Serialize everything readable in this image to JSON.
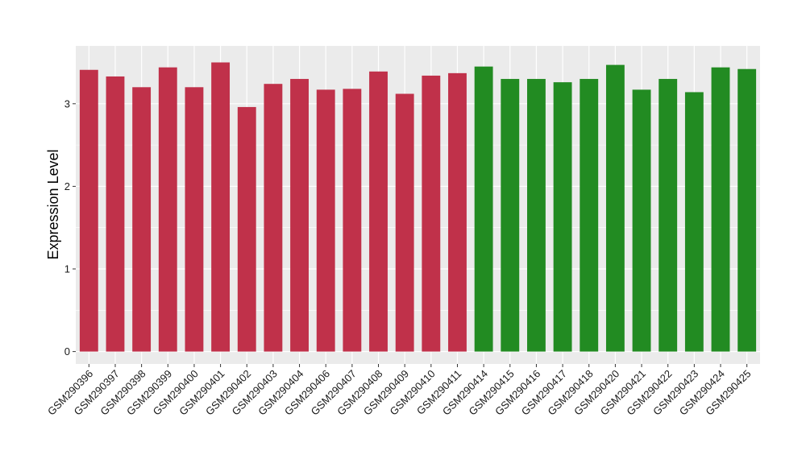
{
  "chart_data": {
    "type": "bar",
    "title": "",
    "xlabel": "",
    "ylabel": "Expression Level",
    "ylim": [
      -0.15,
      3.7
    ],
    "yticks": [
      0,
      1,
      2,
      3
    ],
    "grid": true,
    "legend": "none",
    "categories": [
      "GSM290396",
      "GSM290397",
      "GSM290398",
      "GSM290399",
      "GSM290400",
      "GSM290401",
      "GSM290402",
      "GSM290403",
      "GSM290404",
      "GSM290406",
      "GSM290407",
      "GSM290408",
      "GSM290409",
      "GSM290410",
      "GSM290411",
      "GSM290414",
      "GSM290415",
      "GSM290416",
      "GSM290417",
      "GSM290418",
      "GSM290420",
      "GSM290421",
      "GSM290422",
      "GSM290423",
      "GSM290424",
      "GSM290425"
    ],
    "values": [
      3.41,
      3.33,
      3.2,
      3.44,
      3.2,
      3.5,
      2.96,
      3.24,
      3.3,
      3.17,
      3.18,
      3.39,
      3.12,
      3.34,
      3.37,
      3.45,
      3.3,
      3.3,
      3.26,
      3.3,
      3.47,
      3.17,
      3.3,
      3.14,
      3.44,
      3.42
    ],
    "groups": [
      0,
      0,
      0,
      0,
      0,
      0,
      0,
      0,
      0,
      0,
      0,
      0,
      0,
      0,
      0,
      1,
      1,
      1,
      1,
      1,
      1,
      1,
      1,
      1,
      1,
      1
    ],
    "group_colors": [
      "#c0314a",
      "#228b22"
    ],
    "panel_background": "#ebebeb",
    "gridline_color": "#ffffff"
  }
}
